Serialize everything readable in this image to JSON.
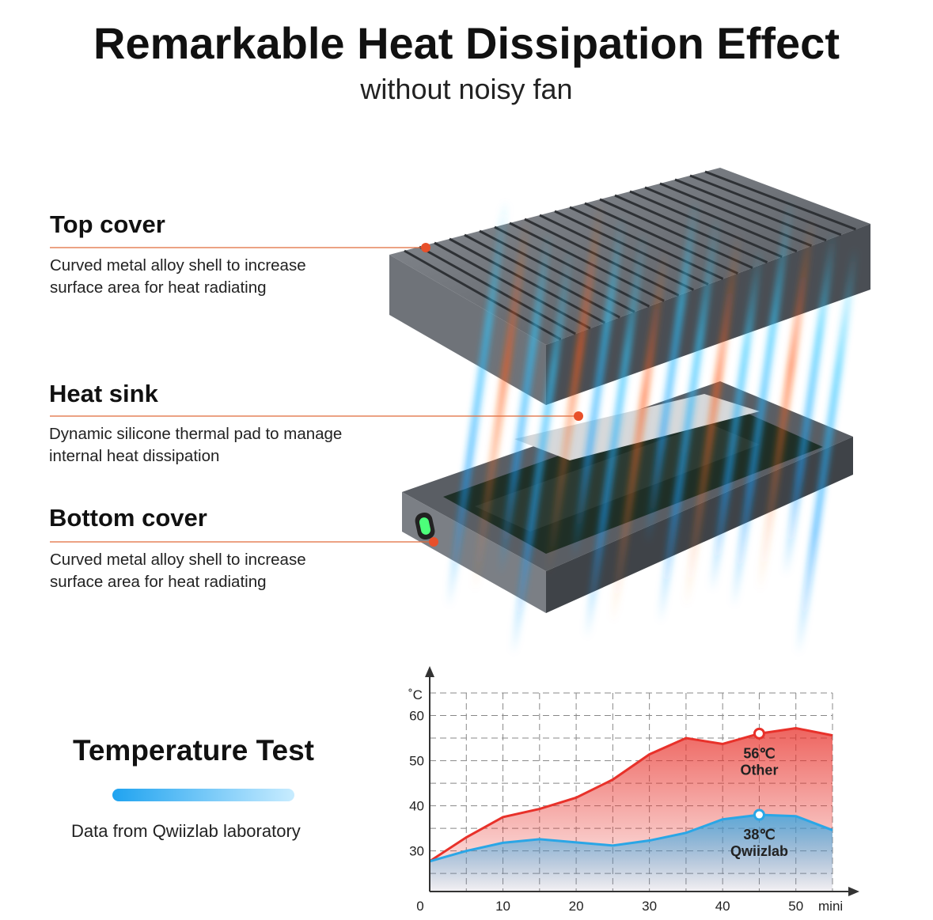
{
  "header": {
    "title": "Remarkable Heat Dissipation Effect",
    "subtitle": "without noisy fan"
  },
  "parts": [
    {
      "name": "Top cover",
      "description": "Curved metal alloy shell to increase surface area for heat radiating"
    },
    {
      "name": "Heat sink",
      "description": "Dynamic silicone thermal pad to manage internal heat dissipation"
    },
    {
      "name": "Bottom cover",
      "description": "Curved metal alloy shell to increase surface area for heat radiating"
    }
  ],
  "test": {
    "title": "Temperature Test",
    "source": "Data from Qwiizlab laboratory"
  },
  "chart_data": {
    "type": "area",
    "x_label": "mini",
    "y_label": "˚C",
    "x": [
      0,
      5,
      10,
      15,
      20,
      25,
      30,
      35,
      40,
      45,
      50,
      55
    ],
    "series": [
      {
        "name": "Other",
        "color": "#e8312a",
        "values": [
          27.7,
          33,
          37.5,
          39.3,
          41.8,
          45.8,
          51.4,
          55,
          53.7,
          56,
          57.2,
          55.6
        ]
      },
      {
        "name": "Qwiizlab",
        "color": "#2aa6e6",
        "values": [
          27.7,
          30,
          31.8,
          32.6,
          31.9,
          31.2,
          32.3,
          34,
          37,
          38,
          37.7,
          34.6
        ]
      }
    ],
    "annotations": [
      {
        "series": 0,
        "index": 9,
        "label": "56℃"
      },
      {
        "series": 1,
        "index": 9,
        "label": "38℃"
      }
    ],
    "xlim": [
      0,
      55
    ],
    "ylim": [
      21,
      65
    ],
    "xticks": [
      0,
      10,
      20,
      30,
      40,
      50
    ],
    "yticks": [
      30,
      40,
      50,
      60
    ],
    "minor_xticks": [
      5,
      15,
      25,
      35,
      45,
      55
    ],
    "minor_yticks": [
      25,
      35,
      45,
      55,
      65
    ],
    "grid": true
  }
}
